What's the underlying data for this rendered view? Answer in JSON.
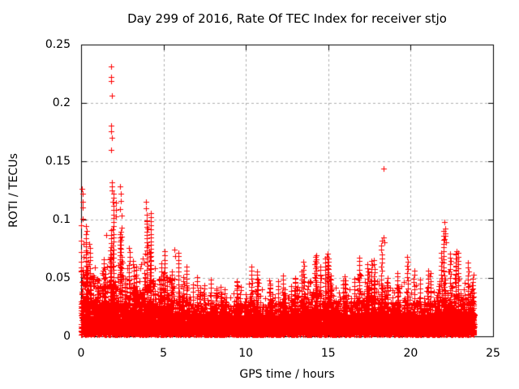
{
  "page": {
    "title": "Day 299 of 2016, Rate Of TEC Index for receiver stjo"
  },
  "chart_data": {
    "type": "scatter",
    "title": "Day 299 of 2016, Rate Of TEC Index for receiver stjo",
    "xlabel": "GPS time / hours",
    "ylabel": "ROTI / TECUs",
    "xlim": [
      0,
      25
    ],
    "ylim": [
      0,
      0.25
    ],
    "xticks": [
      0,
      5,
      10,
      15,
      20,
      25
    ],
    "xtick_labels": [
      "0",
      "5",
      "10",
      "15",
      "20",
      "25"
    ],
    "yticks": [
      0,
      0.05,
      0.1,
      0.15,
      0.2,
      0.25
    ],
    "ytick_labels": [
      "0",
      "0.05",
      "0.1",
      "0.15",
      "0.2",
      "0.25"
    ],
    "grid": "dashed-major",
    "legend": "none",
    "marker": "plus",
    "marker_color": "#ff0000",
    "grid_color": "#b0b0b0",
    "axis_color": "#000000",
    "background_color": "#ffffff",
    "x_data_range": [
      0,
      23.85
    ],
    "envelope": {
      "x_start": 0.25,
      "x_step": 0.5,
      "band_top": [
        0.055,
        0.048,
        0.042,
        0.045,
        0.042,
        0.038,
        0.035,
        0.042,
        0.045,
        0.035,
        0.035,
        0.032,
        0.03,
        0.026,
        0.026,
        0.026,
        0.025,
        0.025,
        0.026,
        0.026,
        0.028,
        0.028,
        0.026,
        0.026,
        0.028,
        0.028,
        0.03,
        0.033,
        0.036,
        0.034,
        0.03,
        0.028,
        0.028,
        0.03,
        0.031,
        0.033,
        0.033,
        0.028,
        0.028,
        0.031,
        0.028,
        0.026,
        0.028,
        0.031,
        0.033,
        0.034,
        0.032,
        0.03
      ],
      "peak": [
        0.105,
        0.082,
        0.072,
        0.135,
        0.098,
        0.085,
        0.068,
        0.105,
        0.115,
        0.068,
        0.078,
        0.075,
        0.06,
        0.048,
        0.052,
        0.052,
        0.046,
        0.044,
        0.05,
        0.047,
        0.065,
        0.057,
        0.05,
        0.052,
        0.057,
        0.052,
        0.062,
        0.072,
        0.072,
        0.078,
        0.07,
        0.054,
        0.054,
        0.076,
        0.065,
        0.072,
        0.085,
        0.056,
        0.06,
        0.068,
        0.062,
        0.052,
        0.058,
        0.072,
        0.098,
        0.075,
        0.066,
        0.06
      ]
    },
    "outlier_points": [
      [
        0.06,
        0.1265
      ],
      [
        0.09,
        0.122
      ],
      [
        0.11,
        0.1155
      ],
      [
        0.08,
        0.1105
      ],
      [
        0.1,
        0.1005
      ],
      [
        0.0,
        0.095
      ],
      [
        0.0,
        0.082
      ],
      [
        0.01,
        0.072
      ],
      [
        0.0,
        0.064
      ],
      [
        1.84,
        0.2313
      ],
      [
        1.845,
        0.2222
      ],
      [
        1.84,
        0.2188
      ],
      [
        1.85,
        0.2063
      ],
      [
        1.845,
        0.1806
      ],
      [
        1.84,
        0.1757
      ],
      [
        1.85,
        0.1701
      ],
      [
        1.845,
        0.1597
      ],
      [
        1.86,
        0.1319
      ],
      [
        1.87,
        0.1285
      ],
      [
        1.85,
        0.125
      ],
      [
        2.12,
        0.1146
      ],
      [
        2.1,
        0.108
      ],
      [
        2.14,
        0.1028
      ],
      [
        2.36,
        0.1285
      ],
      [
        2.39,
        0.1225
      ],
      [
        2.42,
        0.116
      ],
      [
        2.38,
        0.109
      ],
      [
        2.44,
        0.1035
      ],
      [
        3.92,
        0.1155
      ],
      [
        3.96,
        0.1095
      ],
      [
        4.0,
        0.104
      ],
      [
        3.98,
        0.0985
      ],
      [
        4.03,
        0.0925
      ],
      [
        5.68,
        0.0743
      ],
      [
        5.72,
        0.069
      ],
      [
        18.37,
        0.1435
      ],
      [
        18.35,
        0.0847
      ],
      [
        18.4,
        0.0805
      ],
      [
        19.78,
        0.068
      ],
      [
        19.82,
        0.064
      ],
      [
        22.05,
        0.098
      ],
      [
        22.1,
        0.0925
      ],
      [
        22.08,
        0.0885
      ],
      [
        22.12,
        0.086
      ],
      [
        22.06,
        0.0835
      ],
      [
        22.15,
        0.0805
      ]
    ]
  }
}
